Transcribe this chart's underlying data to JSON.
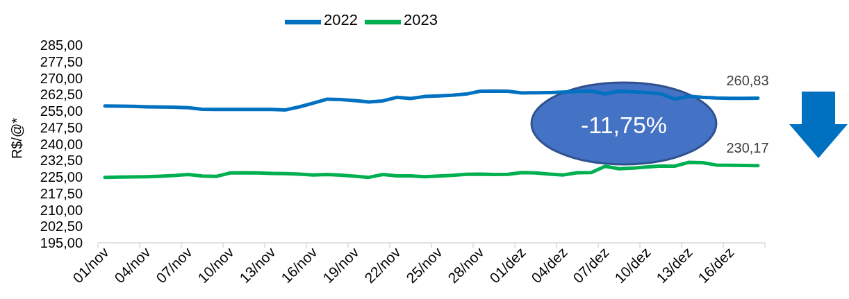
{
  "chart_data": {
    "type": "line",
    "ylabel": "R$/@*",
    "legend": "top",
    "line_style": "solid",
    "categories": [
      "01/nov",
      null,
      null,
      "04/nov",
      null,
      null,
      "07/nov",
      null,
      null,
      "10/nov",
      null,
      null,
      "13/nov",
      null,
      null,
      "16/nov",
      null,
      null,
      "19/nov",
      null,
      null,
      "22/nov",
      null,
      null,
      "25/nov",
      null,
      null,
      "28/nov",
      null,
      null,
      "01/dez",
      null,
      null,
      "04/dez",
      null,
      null,
      "07/dez",
      null,
      null,
      "10/dez",
      null,
      null,
      "13/dez",
      null,
      null,
      "16/dez",
      null,
      null
    ],
    "series": [
      {
        "name": "2022",
        "color": "#0070c0",
        "values": [
          257.3,
          257.2,
          257.1,
          256.9,
          256.8,
          256.7,
          256.5,
          255.8,
          255.7,
          255.7,
          255.7,
          255.7,
          255.7,
          255.5,
          256.9,
          258.6,
          260.4,
          260.2,
          259.7,
          259.1,
          259.6,
          261.2,
          260.7,
          261.6,
          261.9,
          262.2,
          262.7,
          264.0,
          264.1,
          264.0,
          263.2,
          263.3,
          263.4,
          263.6,
          263.9,
          264.1,
          262.8,
          264.0,
          263.7,
          263.4,
          262.9,
          260.4,
          261.7,
          261.2,
          260.9,
          260.8,
          260.8,
          260.83
        ],
        "value_labels": [
          null,
          null,
          null,
          null,
          null,
          null,
          null,
          null,
          null,
          null,
          null,
          null,
          null,
          null,
          null,
          null,
          null,
          null,
          null,
          null,
          null,
          null,
          null,
          null,
          null,
          null,
          null,
          null,
          null,
          null,
          null,
          null,
          null,
          null,
          null,
          null,
          null,
          null,
          null,
          null,
          null,
          null,
          null,
          null,
          null,
          null,
          null,
          "260,83"
        ]
      },
      {
        "name": "2023",
        "color": "#00b050",
        "values": [
          224.8,
          224.9,
          225.0,
          225.1,
          225.3,
          225.6,
          226.1,
          225.4,
          225.2,
          226.8,
          226.9,
          226.8,
          226.6,
          226.5,
          226.3,
          225.9,
          226.1,
          225.8,
          225.3,
          224.8,
          226.1,
          225.5,
          225.5,
          225.1,
          225.4,
          225.7,
          226.2,
          226.3,
          226.1,
          226.2,
          227.0,
          226.8,
          226.3,
          225.9,
          226.9,
          227.0,
          229.8,
          228.7,
          229.0,
          229.5,
          230.0,
          229.9,
          231.6,
          231.5,
          230.4,
          230.3,
          230.2,
          230.17
        ],
        "value_labels": [
          null,
          null,
          null,
          null,
          null,
          null,
          null,
          null,
          null,
          null,
          null,
          null,
          null,
          null,
          null,
          null,
          null,
          null,
          null,
          null,
          null,
          null,
          null,
          null,
          null,
          null,
          null,
          null,
          null,
          null,
          null,
          null,
          null,
          null,
          null,
          null,
          null,
          null,
          null,
          null,
          null,
          null,
          null,
          null,
          null,
          null,
          null,
          "230,17"
        ]
      }
    ],
    "ylim": [
      195,
      285
    ],
    "yticks": [
      {
        "value": 195,
        "label": "195,00"
      },
      {
        "value": 202.5,
        "label": "202,50"
      },
      {
        "value": 210,
        "label": "210,00"
      },
      {
        "value": 217.5,
        "label": "217,50"
      },
      {
        "value": 225,
        "label": "225,00"
      },
      {
        "value": 232.5,
        "label": "232,50"
      },
      {
        "value": 240,
        "label": "240,00"
      },
      {
        "value": 247.5,
        "label": "247,50"
      },
      {
        "value": 255,
        "label": "255,00"
      },
      {
        "value": 262.5,
        "label": "262,50"
      },
      {
        "value": 270,
        "label": "270,00"
      },
      {
        "value": 277.5,
        "label": "277,50"
      },
      {
        "value": 285,
        "label": "285,00"
      }
    ],
    "annotations": [
      "-11,75%"
    ]
  }
}
